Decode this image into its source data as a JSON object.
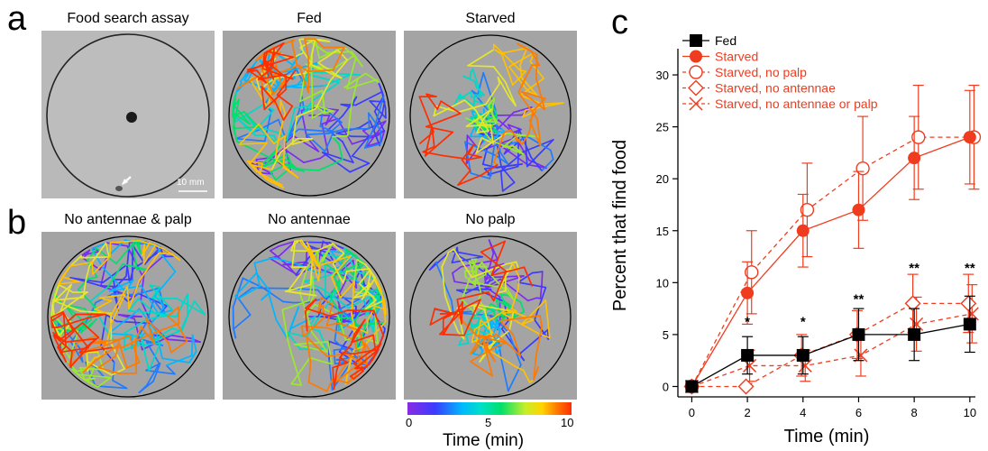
{
  "panels": {
    "a": "a",
    "b": "b",
    "c": "c"
  },
  "tiles": [
    {
      "title": "Food search assay",
      "kind": "assay"
    },
    {
      "title": "Fed",
      "kind": "dense"
    },
    {
      "title": "Starved",
      "kind": "center"
    },
    {
      "title": "No antennae & palp",
      "kind": "dense"
    },
    {
      "title": "No antennae",
      "kind": "dense"
    },
    {
      "title": "No palp",
      "kind": "center"
    }
  ],
  "scale_bar_label": "10 mm",
  "colorbar": {
    "ticks": [
      "0",
      "5",
      "10"
    ],
    "label": "Time (min)"
  },
  "chart_data": {
    "type": "line",
    "xlabel": "Time (min)",
    "ylabel": "Percent that find food",
    "xlim": [
      -0.5,
      10.2
    ],
    "ylim": [
      -1,
      32
    ],
    "x_ticks": [
      0,
      2,
      4,
      6,
      8,
      10
    ],
    "y_ticks": [
      0,
      5,
      10,
      15,
      20,
      25,
      30
    ],
    "x": [
      0,
      2,
      4,
      6,
      8,
      10
    ],
    "legend_position": "top-left",
    "series": [
      {
        "name": "Fed",
        "color": "#000000",
        "marker": "square-filled",
        "dashed": false,
        "values": [
          0,
          3,
          3,
          5,
          5,
          6
        ],
        "err": [
          0,
          1.8,
          1.8,
          2.5,
          2.5,
          2.7
        ]
      },
      {
        "name": "Starved",
        "color": "#f03c1e",
        "marker": "circle-filled",
        "dashed": false,
        "values": [
          0,
          9,
          15,
          17,
          22,
          24
        ],
        "err": [
          0,
          3,
          3.5,
          3.7,
          4,
          4.5
        ]
      },
      {
        "name": "Starved, no palp",
        "color": "#f03c1e",
        "marker": "circle-open",
        "dashed": true,
        "values": [
          0,
          11,
          17,
          21,
          24,
          24
        ],
        "err": [
          0,
          4,
          4.5,
          5,
          5,
          5
        ]
      },
      {
        "name": "Starved, no antennae",
        "color": "#f03c1e",
        "marker": "diamond-open",
        "dashed": true,
        "values": [
          0,
          0,
          3,
          5,
          8,
          8
        ],
        "err": [
          0,
          0,
          2,
          2.3,
          2.8,
          2.8
        ]
      },
      {
        "name": "Starved, no antennae or palp",
        "color": "#f03c1e",
        "marker": "x",
        "dashed": true,
        "values": [
          0,
          2,
          2,
          3,
          6,
          7
        ],
        "err": [
          0,
          1.5,
          1.5,
          2,
          2.6,
          2.8
        ]
      }
    ],
    "annotations": [
      {
        "x": 2,
        "y": 5.8,
        "text": "*"
      },
      {
        "x": 4,
        "y": 5.8,
        "text": "*"
      },
      {
        "x": 6,
        "y": 8.0,
        "text": "**"
      },
      {
        "x": 8,
        "y": 11.0,
        "text": "**"
      },
      {
        "x": 10,
        "y": 11.0,
        "text": "**"
      }
    ]
  }
}
